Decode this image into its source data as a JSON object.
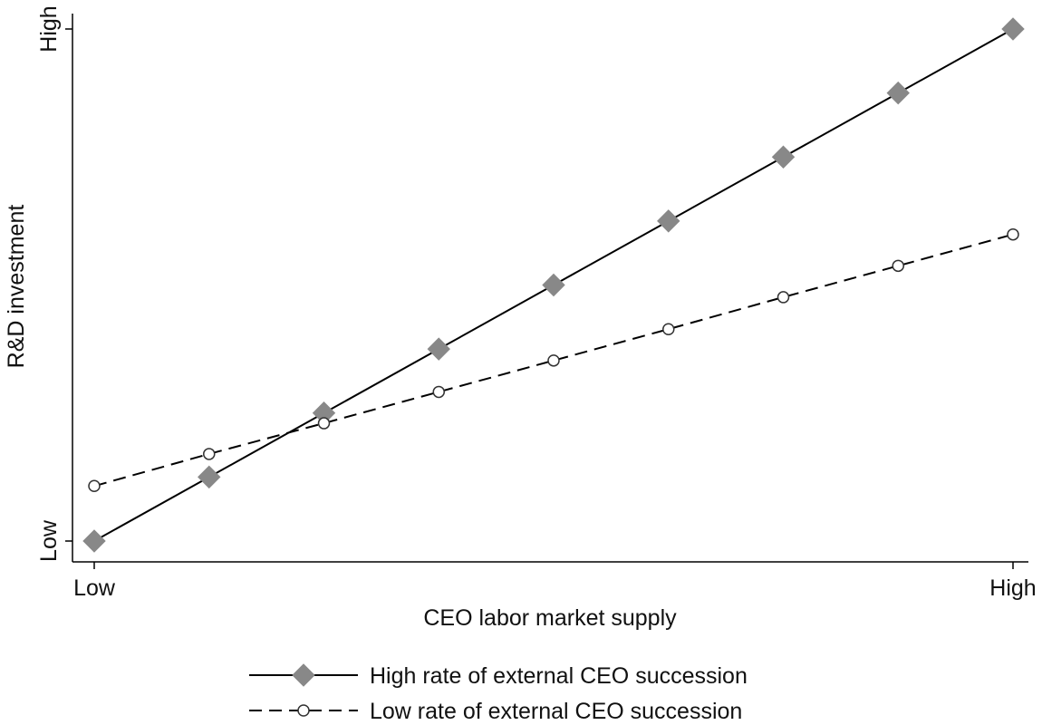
{
  "chart_data": {
    "type": "line",
    "xlabel": "CEO labor market supply",
    "ylabel": "R&D investment",
    "x": [
      0,
      1,
      2,
      3,
      4,
      5,
      6,
      7,
      8
    ],
    "xlim": [
      0,
      8
    ],
    "ylim": [
      0,
      8
    ],
    "x_tick_labels": [
      {
        "value": 0,
        "label": "Low"
      },
      {
        "value": 8,
        "label": "High"
      }
    ],
    "y_tick_labels": [
      {
        "value": 0,
        "label": "Low"
      },
      {
        "value": 8,
        "label": "High"
      }
    ],
    "grid": false,
    "legend_position": "bottom",
    "series": [
      {
        "name": "High rate of external CEO succession",
        "values": [
          0,
          1,
          2,
          3,
          4,
          5,
          6,
          7,
          8
        ],
        "line_style": "solid",
        "marker": "diamond",
        "line_color": "#000000",
        "marker_color": "#888888"
      },
      {
        "name": "Low rate of external CEO succession",
        "values": [
          0.86,
          1.36,
          1.84,
          2.33,
          2.82,
          3.31,
          3.81,
          4.3,
          4.79
        ],
        "line_style": "dashed",
        "marker": "hollow-circle",
        "line_color": "#000000",
        "marker_color": "#333333"
      }
    ]
  }
}
